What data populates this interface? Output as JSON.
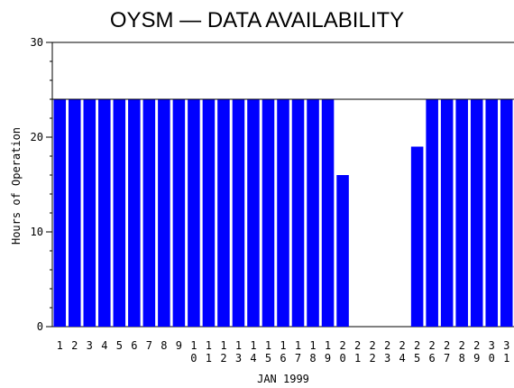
{
  "chart_data": {
    "type": "bar",
    "title": "OYSM — DATA AVAILABILITY",
    "xlabel": "JAN 1999",
    "ylabel": "Hours of Operation",
    "ylim": [
      0,
      30
    ],
    "yticks": [
      "0",
      "10",
      "20",
      "30"
    ],
    "categories": [
      "1",
      "2",
      "3",
      "4",
      "5",
      "6",
      "7",
      "8",
      "9",
      "10",
      "11",
      "12",
      "13",
      "14",
      "15",
      "16",
      "17",
      "18",
      "19",
      "20",
      "21",
      "22",
      "23",
      "24",
      "25",
      "26",
      "27",
      "28",
      "29",
      "30",
      "31"
    ],
    "values": [
      24,
      24,
      24,
      24,
      24,
      24,
      24,
      24,
      24,
      24,
      24,
      24,
      24,
      24,
      24,
      24,
      24,
      24,
      24,
      16,
      0,
      0,
      0,
      0,
      19,
      24,
      24,
      24,
      24,
      24,
      24
    ],
    "bar_color": "#0000ff",
    "reference_line": 24,
    "grid": false
  }
}
